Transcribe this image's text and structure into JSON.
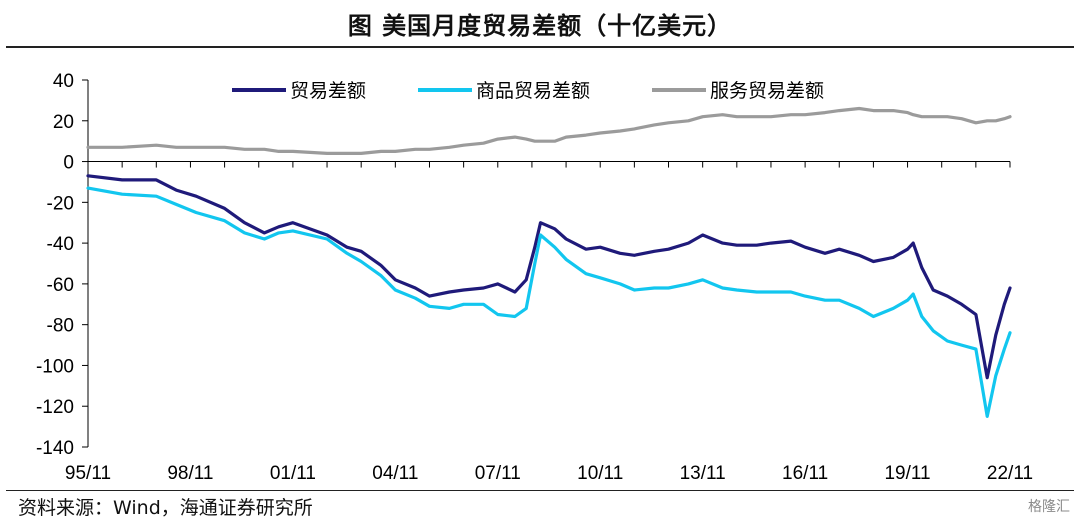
{
  "header": {
    "title": "图  美国月度贸易差额（十亿美元）"
  },
  "footer": {
    "source": "资料来源：Wind，海通证券研究所",
    "watermark": "格隆汇"
  },
  "chart_data": {
    "type": "line",
    "title": "美国月度贸易差额（十亿美元）",
    "xlabel": "",
    "ylabel": "",
    "ylim": [
      -140,
      40
    ],
    "yticks": [
      40,
      20,
      0,
      -20,
      -40,
      -60,
      -80,
      -100,
      -120,
      -140
    ],
    "xlim": [
      "1995-11",
      "2022-11"
    ],
    "xticks": [
      "95/11",
      "98/11",
      "01/11",
      "04/11",
      "07/11",
      "10/11",
      "13/11",
      "16/11",
      "19/11",
      "22/11"
    ],
    "legend_position": "top",
    "grid": false,
    "series": [
      {
        "name": "贸易差额",
        "color": "#1f1a7a",
        "x": [
          "1995-11",
          "1996-11",
          "1997-11",
          "1998-06",
          "1999-01",
          "1999-11",
          "2000-06",
          "2001-01",
          "2001-06",
          "2001-11",
          "2002-11",
          "2003-06",
          "2003-11",
          "2004-06",
          "2004-11",
          "2005-06",
          "2005-11",
          "2006-06",
          "2006-11",
          "2007-06",
          "2007-11",
          "2008-05",
          "2008-09",
          "2008-12",
          "2009-02",
          "2009-07",
          "2009-11",
          "2010-06",
          "2010-11",
          "2011-06",
          "2011-11",
          "2012-06",
          "2012-11",
          "2013-06",
          "2013-11",
          "2014-06",
          "2014-11",
          "2015-06",
          "2015-11",
          "2016-06",
          "2016-11",
          "2017-06",
          "2017-11",
          "2018-06",
          "2018-11",
          "2019-06",
          "2019-11",
          "2020-01",
          "2020-04",
          "2020-08",
          "2021-01",
          "2021-06",
          "2021-11",
          "2022-03",
          "2022-06",
          "2022-09",
          "2022-11"
        ],
        "values": [
          -7,
          -9,
          -9,
          -14,
          -17,
          -23,
          -30,
          -35,
          -32,
          -30,
          -36,
          -42,
          -44,
          -51,
          -58,
          -62,
          -66,
          -64,
          -63,
          -62,
          -60,
          -64,
          -58,
          -42,
          -30,
          -33,
          -38,
          -43,
          -42,
          -45,
          -46,
          -44,
          -43,
          -40,
          -36,
          -40,
          -41,
          -41,
          -40,
          -39,
          -42,
          -45,
          -43,
          -46,
          -49,
          -47,
          -43,
          -40,
          -52,
          -63,
          -66,
          -70,
          -75,
          -106,
          -85,
          -70,
          -62
        ]
      },
      {
        "name": "商品贸易差额",
        "color": "#12c6ef",
        "x": [
          "1995-11",
          "1996-11",
          "1997-11",
          "1998-06",
          "1999-01",
          "1999-11",
          "2000-06",
          "2001-01",
          "2001-06",
          "2001-11",
          "2002-11",
          "2003-06",
          "2003-11",
          "2004-06",
          "2004-11",
          "2005-06",
          "2005-11",
          "2006-06",
          "2006-11",
          "2007-06",
          "2007-11",
          "2008-05",
          "2008-09",
          "2008-12",
          "2009-02",
          "2009-07",
          "2009-11",
          "2010-06",
          "2010-11",
          "2011-06",
          "2011-11",
          "2012-06",
          "2012-11",
          "2013-06",
          "2013-11",
          "2014-06",
          "2014-11",
          "2015-06",
          "2015-11",
          "2016-06",
          "2016-11",
          "2017-06",
          "2017-11",
          "2018-06",
          "2018-11",
          "2019-06",
          "2019-11",
          "2020-01",
          "2020-04",
          "2020-08",
          "2021-01",
          "2021-06",
          "2021-11",
          "2022-03",
          "2022-06",
          "2022-09",
          "2022-11"
        ],
        "values": [
          -13,
          -16,
          -17,
          -21,
          -25,
          -29,
          -35,
          -38,
          -35,
          -34,
          -38,
          -45,
          -49,
          -56,
          -63,
          -67,
          -71,
          -72,
          -70,
          -70,
          -75,
          -76,
          -72,
          -50,
          -36,
          -42,
          -48,
          -55,
          -57,
          -60,
          -63,
          -62,
          -62,
          -60,
          -58,
          -62,
          -63,
          -64,
          -64,
          -64,
          -66,
          -68,
          -68,
          -72,
          -76,
          -72,
          -68,
          -65,
          -76,
          -83,
          -88,
          -90,
          -92,
          -125,
          -105,
          -92,
          -84
        ]
      },
      {
        "name": "服务贸易差额",
        "color": "#9b9b9b",
        "x": [
          "1995-11",
          "1996-11",
          "1997-11",
          "1998-06",
          "1999-01",
          "1999-11",
          "2000-06",
          "2001-01",
          "2001-06",
          "2001-11",
          "2002-11",
          "2003-06",
          "2003-11",
          "2004-06",
          "2004-11",
          "2005-06",
          "2005-11",
          "2006-06",
          "2006-11",
          "2007-06",
          "2007-11",
          "2008-05",
          "2008-09",
          "2008-12",
          "2009-02",
          "2009-07",
          "2009-11",
          "2010-06",
          "2010-11",
          "2011-06",
          "2011-11",
          "2012-06",
          "2012-11",
          "2013-06",
          "2013-11",
          "2014-06",
          "2014-11",
          "2015-06",
          "2015-11",
          "2016-06",
          "2016-11",
          "2017-06",
          "2017-11",
          "2018-06",
          "2018-11",
          "2019-06",
          "2019-11",
          "2020-01",
          "2020-04",
          "2020-08",
          "2021-01",
          "2021-06",
          "2021-11",
          "2022-03",
          "2022-06",
          "2022-09",
          "2022-11"
        ],
        "values": [
          7,
          7,
          8,
          7,
          7,
          7,
          6,
          6,
          5,
          5,
          4,
          4,
          4,
          5,
          5,
          6,
          6,
          7,
          8,
          9,
          11,
          12,
          11,
          10,
          10,
          10,
          12,
          13,
          14,
          15,
          16,
          18,
          19,
          20,
          22,
          23,
          22,
          22,
          22,
          23,
          23,
          24,
          25,
          26,
          25,
          25,
          24,
          23,
          22,
          22,
          22,
          21,
          19,
          20,
          20,
          21,
          22
        ]
      }
    ]
  }
}
